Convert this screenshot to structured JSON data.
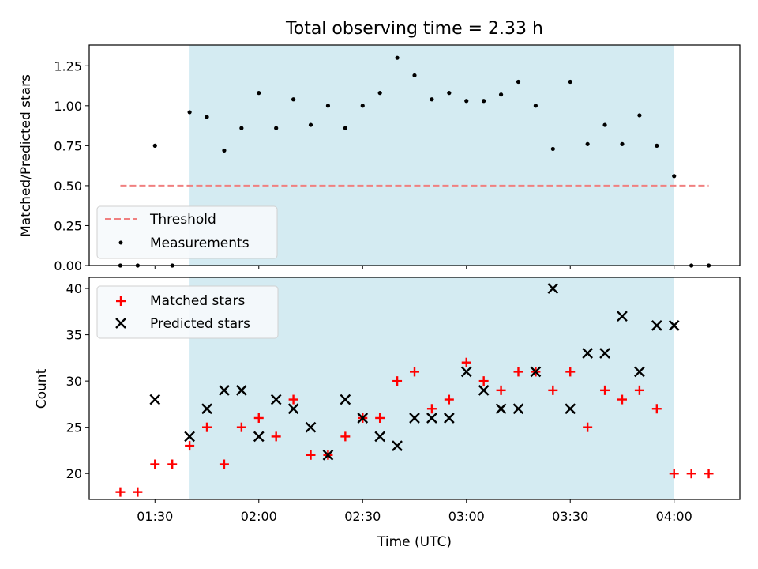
{
  "chart_data": [
    {
      "type": "scatter",
      "title": "Total observing time = 2.33 h",
      "ylabel": "Matched/Predicted stars",
      "ylim": [
        0,
        1.38
      ],
      "yticks": [
        "0.00",
        "0.25",
        "0.50",
        "0.75",
        "1.00",
        "1.25"
      ],
      "ytick_values": [
        0,
        0.25,
        0.5,
        0.75,
        1.0,
        1.25
      ],
      "shaded_span": [
        "01:40",
        "04:00"
      ],
      "threshold": {
        "label": "Threshold",
        "value": 0.5,
        "x": [
          "01:20",
          "04:10"
        ],
        "color": "#f08080"
      },
      "series": [
        {
          "name": "Measurements",
          "marker": "dot",
          "color": "#000000",
          "points": [
            [
              "01:20",
              0.0
            ],
            [
              "01:25",
              0.0
            ],
            [
              "01:30",
              0.75
            ],
            [
              "01:35",
              0.0
            ],
            [
              "01:40",
              0.96
            ],
            [
              "01:45",
              0.93
            ],
            [
              "01:50",
              0.72
            ],
            [
              "01:55",
              0.86
            ],
            [
              "02:00",
              1.08
            ],
            [
              "02:05",
              0.86
            ],
            [
              "02:10",
              1.04
            ],
            [
              "02:15",
              0.88
            ],
            [
              "02:20",
              1.0
            ],
            [
              "02:25",
              0.86
            ],
            [
              "02:30",
              1.0
            ],
            [
              "02:35",
              1.08
            ],
            [
              "02:40",
              1.3
            ],
            [
              "02:45",
              1.19
            ],
            [
              "02:50",
              1.04
            ],
            [
              "02:55",
              1.08
            ],
            [
              "03:00",
              1.03
            ],
            [
              "03:05",
              1.03
            ],
            [
              "03:10",
              1.07
            ],
            [
              "03:15",
              1.15
            ],
            [
              "03:20",
              1.0
            ],
            [
              "03:25",
              0.73
            ],
            [
              "03:30",
              1.15
            ],
            [
              "03:35",
              0.76
            ],
            [
              "03:40",
              0.88
            ],
            [
              "03:45",
              0.76
            ],
            [
              "03:50",
              0.94
            ],
            [
              "03:55",
              0.75
            ],
            [
              "04:00",
              0.56
            ],
            [
              "04:05",
              0.0
            ],
            [
              "04:10",
              0.0
            ]
          ]
        }
      ],
      "legend": {
        "placement": "lower-left",
        "entries": [
          "Threshold",
          "Measurements"
        ]
      }
    },
    {
      "type": "scatter",
      "xlabel": "Time (UTC)",
      "ylabel": "Count",
      "ylim": [
        17.2,
        41.2
      ],
      "yticks": [
        "20",
        "25",
        "30",
        "35",
        "40"
      ],
      "ytick_values": [
        20,
        25,
        30,
        35,
        40
      ],
      "xticks": [
        "01:30",
        "02:00",
        "02:30",
        "03:00",
        "03:30",
        "04:00"
      ],
      "xlim": [
        "01:11",
        "04:19"
      ],
      "shaded_span": [
        "01:40",
        "04:00"
      ],
      "series": [
        {
          "name": "Matched stars",
          "marker": "plus",
          "color": "#ff0000",
          "points": [
            [
              "01:20",
              18
            ],
            [
              "01:25",
              18
            ],
            [
              "01:30",
              21
            ],
            [
              "01:35",
              21
            ],
            [
              "01:40",
              23
            ],
            [
              "01:45",
              25
            ],
            [
              "01:50",
              21
            ],
            [
              "01:55",
              25
            ],
            [
              "02:00",
              26
            ],
            [
              "02:05",
              24
            ],
            [
              "02:10",
              28
            ],
            [
              "02:15",
              22
            ],
            [
              "02:20",
              22
            ],
            [
              "02:25",
              24
            ],
            [
              "02:30",
              26
            ],
            [
              "02:35",
              26
            ],
            [
              "02:40",
              30
            ],
            [
              "02:45",
              31
            ],
            [
              "02:50",
              27
            ],
            [
              "02:55",
              28
            ],
            [
              "03:00",
              32
            ],
            [
              "03:05",
              30
            ],
            [
              "03:10",
              29
            ],
            [
              "03:15",
              31
            ],
            [
              "03:20",
              31
            ],
            [
              "03:25",
              29
            ],
            [
              "03:30",
              31
            ],
            [
              "03:35",
              25
            ],
            [
              "03:40",
              29
            ],
            [
              "03:45",
              28
            ],
            [
              "03:50",
              29
            ],
            [
              "03:55",
              27
            ],
            [
              "04:00",
              20
            ],
            [
              "04:05",
              20
            ],
            [
              "04:10",
              20
            ]
          ]
        },
        {
          "name": "Predicted stars",
          "marker": "x",
          "color": "#000000",
          "points": [
            [
              "01:30",
              28
            ],
            [
              "01:40",
              24
            ],
            [
              "01:45",
              27
            ],
            [
              "01:50",
              29
            ],
            [
              "01:55",
              29
            ],
            [
              "02:00",
              24
            ],
            [
              "02:05",
              28
            ],
            [
              "02:10",
              27
            ],
            [
              "02:15",
              25
            ],
            [
              "02:20",
              22
            ],
            [
              "02:25",
              28
            ],
            [
              "02:30",
              26
            ],
            [
              "02:35",
              24
            ],
            [
              "02:40",
              23
            ],
            [
              "02:45",
              26
            ],
            [
              "02:50",
              26
            ],
            [
              "02:55",
              26
            ],
            [
              "03:00",
              31
            ],
            [
              "03:05",
              29
            ],
            [
              "03:10",
              27
            ],
            [
              "03:15",
              27
            ],
            [
              "03:20",
              31
            ],
            [
              "03:25",
              40
            ],
            [
              "03:30",
              27
            ],
            [
              "03:35",
              33
            ],
            [
              "03:40",
              33
            ],
            [
              "03:45",
              37
            ],
            [
              "03:50",
              31
            ],
            [
              "03:55",
              36
            ],
            [
              "04:00",
              36
            ]
          ]
        }
      ],
      "legend": {
        "placement": "top-left",
        "entries": [
          "Matched stars",
          "Predicted stars"
        ]
      }
    }
  ],
  "colors": {
    "shade": "#add8e6",
    "threshold": "#f08080",
    "matched": "#ff0000",
    "predicted": "#000000"
  }
}
